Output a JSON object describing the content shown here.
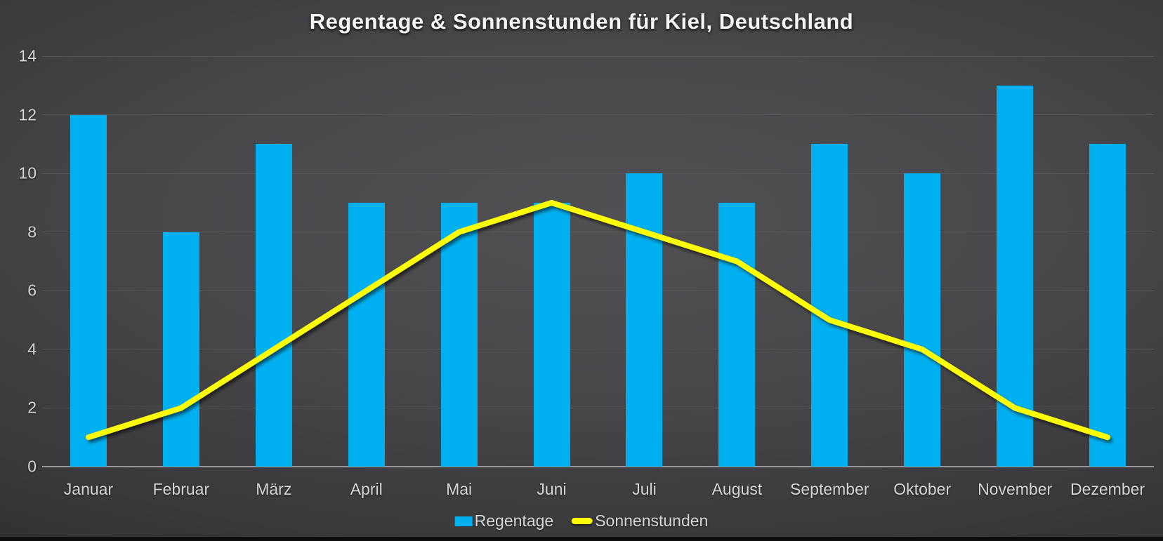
{
  "title": "Regentage & Sonnenstunden für Kiel, Deutschland",
  "colors": {
    "bar": "#00B0F0",
    "line": "#FFFF00",
    "background_center": "#515154",
    "background_corner": "#252528",
    "gridline": "#58585B",
    "axis_line": "#98989B",
    "label_text": "#D6D6D6",
    "title_text": "#F5F5F5"
  },
  "y_axis": {
    "min": 0,
    "max": 14,
    "step": 2,
    "tick_labels": [
      "0",
      "2",
      "4",
      "6",
      "8",
      "10",
      "12",
      "14"
    ]
  },
  "legend": [
    {
      "label": "Regentage",
      "marker": "bar-swatch-icon",
      "color": "#00B0F0"
    },
    {
      "label": "Sonnenstunden",
      "marker": "line-swatch-icon",
      "color": "#FFFF00"
    }
  ],
  "chart_data": {
    "type": "bar+line",
    "title": "Regentage & Sonnenstunden für Kiel, Deutschland",
    "categories": [
      "Januar",
      "Februar",
      "März",
      "April",
      "Mai",
      "Juni",
      "Juli",
      "August",
      "September",
      "Oktober",
      "November",
      "Dezember"
    ],
    "series": [
      {
        "name": "Regentage",
        "type": "bar",
        "color": "#00B0F0",
        "values": [
          12,
          8,
          11,
          9,
          9,
          9,
          10,
          9,
          11,
          10,
          13,
          11
        ]
      },
      {
        "name": "Sonnenstunden",
        "type": "line",
        "color": "#FFFF00",
        "values": [
          1,
          2,
          4,
          6,
          8,
          9,
          8,
          7,
          5,
          4,
          2,
          1
        ]
      }
    ],
    "xlabel": "",
    "ylabel": "",
    "ylim": [
      0,
      14
    ],
    "grid": true,
    "legend_position": "bottom"
  }
}
